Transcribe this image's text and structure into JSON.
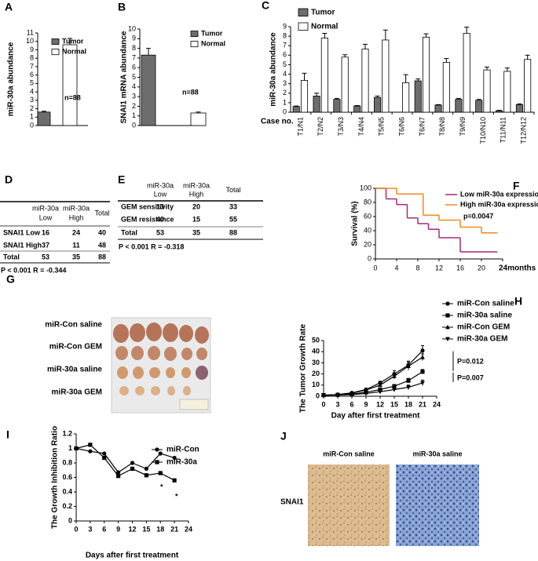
{
  "chart_data": [
    {
      "type": "bar",
      "label": "A",
      "ylabel": "miR-30a abundance",
      "ylim": [
        0,
        11
      ],
      "yticks": [
        0,
        1,
        2,
        3,
        4,
        5,
        6,
        7,
        8,
        9,
        10,
        11
      ],
      "series": [
        {
          "name": "Tumor",
          "color": "#6d6d6d",
          "values": [
            1.6
          ],
          "errors": [
            0.1
          ]
        },
        {
          "name": "Normal",
          "color": "#ffffff",
          "values": [
            9.6
          ],
          "errors": [
            0.75
          ]
        }
      ],
      "annotation": "n=88"
    },
    {
      "type": "bar",
      "label": "B",
      "ylabel": "SNAI1 mRNA abundance",
      "ylim": [
        0,
        10
      ],
      "yticks": [
        0,
        1,
        2,
        3,
        4,
        5,
        6,
        7,
        8,
        9,
        10
      ],
      "series": [
        {
          "name": "Tumor",
          "color": "#6d6d6d",
          "values": [
            7.3
          ],
          "errors": [
            0.7
          ]
        },
        {
          "name": "Normal",
          "color": "#ffffff",
          "values": [
            1.3
          ],
          "errors": [
            0.1
          ]
        }
      ],
      "annotation": "n=88"
    },
    {
      "type": "bar",
      "label": "C",
      "ylabel": "miR-30a abundance",
      "xlabel": "Case no.",
      "ylim": [
        0,
        9
      ],
      "yticks": [
        0,
        1,
        2,
        3,
        4,
        5,
        6,
        7,
        8,
        9
      ],
      "categories": [
        "T1/N1",
        "T2/N2",
        "T3/N3",
        "T4/N4",
        "T5/N5",
        "T6/N6",
        "T6/N7",
        "T8/N8",
        "T9/N9",
        "T10/N10",
        "T11/N11",
        "T12/N12"
      ],
      "series": [
        {
          "name": "Tumor",
          "color": "#6d6d6d",
          "values": [
            0.6,
            1.7,
            1.35,
            0.65,
            1.55,
            0,
            3.3,
            0.75,
            1.35,
            1.25,
            0.15,
            0.8
          ],
          "errors": [
            0.05,
            0.3,
            0.1,
            0.05,
            0.15,
            0,
            0.2,
            0.05,
            0.1,
            0.1,
            0.05,
            0.08
          ]
        },
        {
          "name": "Normal",
          "color": "#ffffff",
          "values": [
            3.35,
            7.8,
            5.8,
            6.65,
            7.6,
            3.1,
            7.9,
            5.25,
            8.3,
            4.45,
            4.3,
            5.55
          ],
          "errors": [
            0.75,
            0.5,
            0.25,
            0.5,
            1.05,
            0.85,
            0.35,
            0.4,
            0.65,
            0.3,
            0.35,
            0.45
          ]
        }
      ]
    },
    {
      "type": "step",
      "label": "F",
      "ylabel": "Survival (%)",
      "xlim": [
        0,
        24
      ],
      "xticks": [
        0,
        4,
        8,
        12,
        16,
        20,
        {
          "value": 24,
          "label": "24months"
        }
      ],
      "ylim": [
        0,
        100
      ],
      "yticks": [
        0,
        20,
        40,
        60,
        80,
        100
      ],
      "series": [
        {
          "name": "Low  miR-30a expression",
          "color": "#a3297c",
          "x": [
            0,
            2,
            4,
            6,
            8,
            10,
            12,
            16
          ],
          "values": [
            100,
            85,
            77,
            58,
            50,
            42,
            30,
            10
          ]
        },
        {
          "name": "High miR-30a expression",
          "color": "#f0891c",
          "x": [
            0,
            4,
            9,
            12,
            16,
            20
          ],
          "values": [
            100,
            92,
            62,
            55,
            45,
            37
          ]
        }
      ],
      "annotation": "p=0.0047"
    },
    {
      "type": "line",
      "label": "H",
      "ylabel": "The Tumor Growth Rate",
      "xlabel": "Day after first treatment",
      "xlim": [
        0,
        24
      ],
      "xticks": [
        0,
        3,
        6,
        9,
        12,
        15,
        18,
        21,
        24
      ],
      "ylim": [
        0,
        50
      ],
      "yticks": [
        0,
        10,
        20,
        30,
        40,
        50
      ],
      "series": [
        {
          "name": "miR-Con saline",
          "marker": "circle",
          "color": "#000000",
          "x": [
            0,
            3,
            6,
            9,
            12,
            15,
            18,
            21
          ],
          "values": [
            1,
            1.5,
            3,
            6,
            12,
            20,
            28,
            41
          ],
          "errors": [
            0.3,
            0.4,
            0.6,
            1,
            1.5,
            3,
            3.5,
            4.5
          ]
        },
        {
          "name": "miR-30a  saline",
          "marker": "square",
          "color": "#000000",
          "x": [
            0,
            3,
            6,
            9,
            12,
            15,
            18,
            21
          ],
          "values": [
            1,
            1.2,
            2,
            3.5,
            6,
            9,
            14,
            22
          ],
          "errors": [
            0.2,
            0.3,
            0.4,
            0.6,
            1,
            1.5,
            2,
            2
          ]
        },
        {
          "name": "miR-Con GEM",
          "marker": "triangle",
          "color": "#000000",
          "x": [
            0,
            3,
            6,
            9,
            12,
            15,
            18,
            21
          ],
          "values": [
            1,
            1.4,
            2.8,
            5.5,
            10,
            18,
            27,
            35
          ],
          "errors": [
            0.3,
            0.4,
            0.5,
            1,
            1.5,
            2.5,
            3.5,
            3
          ]
        },
        {
          "name": "miR-30a  GEM",
          "marker": "triangle-down",
          "color": "#000000",
          "x": [
            0,
            3,
            6,
            9,
            12,
            15,
            18,
            21
          ],
          "values": [
            0.8,
            1,
            1.5,
            2.5,
            4,
            6,
            8,
            12
          ],
          "errors": [
            0.2,
            0.2,
            0.3,
            0.5,
            0.8,
            1.2,
            2,
            2.5
          ]
        }
      ],
      "annotations": [
        "P=0.012",
        "P=0.007"
      ]
    },
    {
      "type": "line",
      "label": "I",
      "ylabel": "The Growth Inhibition Ratio",
      "xlabel": "Days after first treatment",
      "xlim": [
        0,
        24
      ],
      "xticks": [
        0,
        3,
        6,
        9,
        12,
        15,
        18,
        21,
        24
      ],
      "ylim": [
        0,
        1.2
      ],
      "yticks": [
        0,
        0.2,
        0.4,
        0.6,
        0.8,
        1,
        1.2
      ],
      "series": [
        {
          "name": "miR-Con",
          "marker": "circle",
          "color": "#000000",
          "x": [
            0,
            3,
            6,
            9,
            12,
            15,
            18,
            21
          ],
          "values": [
            1,
            0.96,
            0.93,
            0.67,
            0.8,
            0.72,
            0.93,
            0.87
          ]
        },
        {
          "name": "miR-30a",
          "marker": "square",
          "color": "#000000",
          "x": [
            0,
            3,
            6,
            9,
            12,
            15,
            18,
            21
          ],
          "values": [
            1,
            1.05,
            0.87,
            0.62,
            0.72,
            0.63,
            0.66,
            0.56
          ]
        }
      ],
      "annotations": [
        "*",
        "*"
      ]
    }
  ],
  "tables": [
    {
      "label": "D",
      "columns": [
        [
          "miR-30a",
          "Low"
        ],
        [
          "miR-30a",
          "High"
        ],
        [
          "Total"
        ]
      ],
      "rows": [
        [
          "SNAI1 Low",
          16,
          24,
          40
        ],
        [
          "SNAI1 High",
          37,
          11,
          48
        ],
        [
          "Total",
          53,
          35,
          88
        ]
      ],
      "footnote": "P < 0.001 R = -0.344"
    },
    {
      "label": "E",
      "columns": [
        [
          "miR-30a",
          "Low"
        ],
        [
          "miR-30a",
          "High"
        ],
        [
          "Total"
        ]
      ],
      "rows": [
        [
          "GEM sensitivity",
          13,
          20,
          33
        ],
        [
          "GEM resistance",
          40,
          15,
          55
        ],
        [
          "Total",
          53,
          35,
          88
        ]
      ],
      "footnote": "P < 0.001 R = -0.318"
    }
  ],
  "images": [
    {
      "label": "G",
      "rows": [
        "miR-Con saline",
        "miR-Con GEM",
        "miR-30a saline",
        "miR-30a GEM"
      ]
    },
    {
      "label": "J",
      "titles": [
        "miR-Con saline",
        "miR-30a saline"
      ],
      "row": "SNAI1"
    }
  ]
}
